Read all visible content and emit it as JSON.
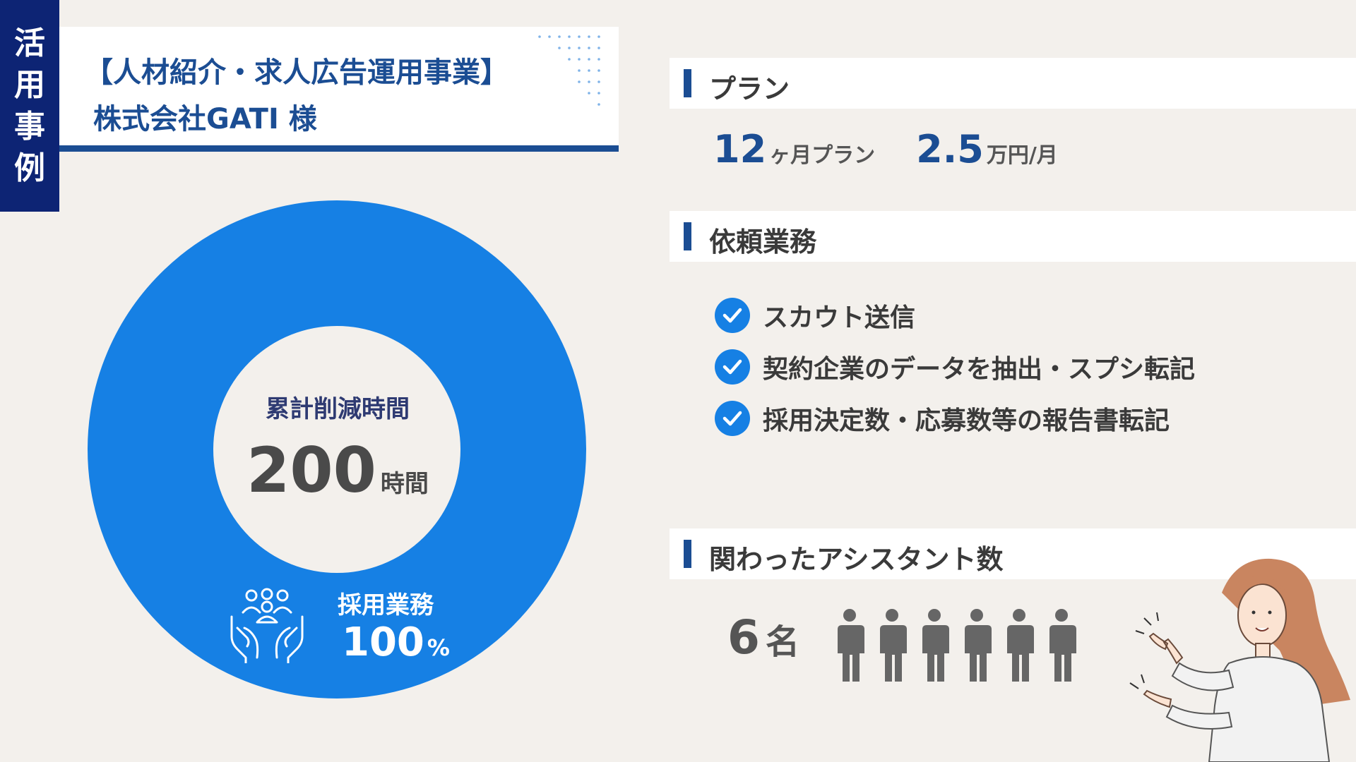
{
  "tag": {
    "chars": [
      "活",
      "用",
      "事",
      "例"
    ]
  },
  "header": {
    "title": "【人材紹介・求人広告運用事業】",
    "subtitle": "株式会社GATI 様"
  },
  "donut": {
    "center_label": "累計削減時間",
    "center_value": "200",
    "center_unit": "時間",
    "segment_label": "採用業務",
    "segment_value": "100",
    "segment_unit": "%",
    "color": "#1680e4",
    "icon": "people-in-hands-icon"
  },
  "plan": {
    "heading": "プラン",
    "months": "12",
    "months_suffix": "ヶ月プラン",
    "price": "2.5",
    "price_suffix": "万円/月"
  },
  "tasks": {
    "heading": "依頼業務",
    "items": [
      "スカウト送信",
      "契約企業のデータを抽出・スプシ転記",
      "採用決定数・応募数等の報告書転記"
    ]
  },
  "assistants": {
    "heading": "関わったアシスタント数",
    "count": "6",
    "unit": "名"
  },
  "colors": {
    "navy": "#0d2474",
    "blue": "#1b4d93",
    "accent": "#1680e4",
    "background": "#f3f0ec"
  }
}
